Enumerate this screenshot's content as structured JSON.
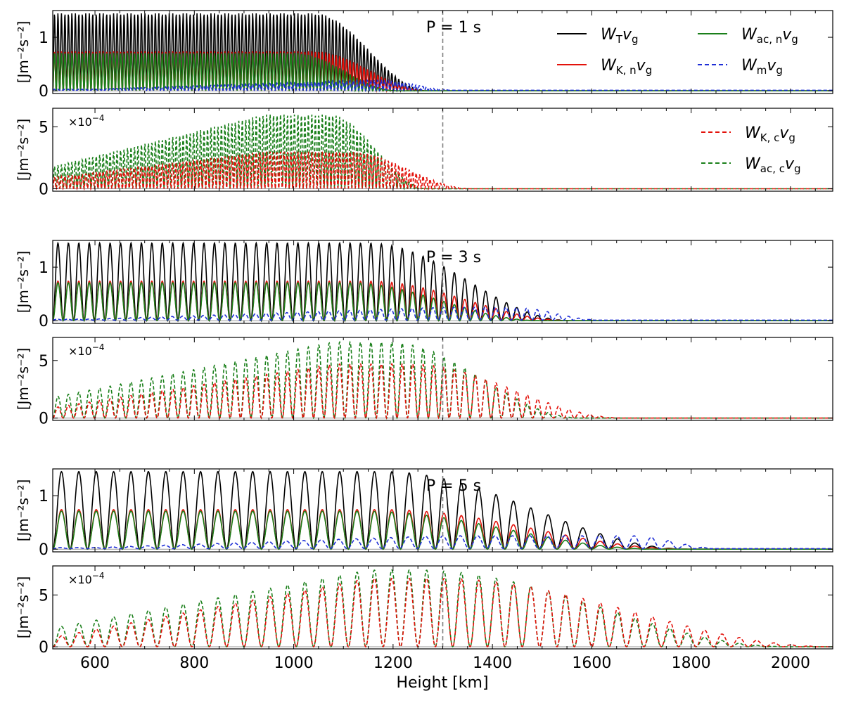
{
  "figure": {
    "xlabel": "Height [km]",
    "x_ticks": [
      600,
      800,
      1000,
      1200,
      1400,
      1600,
      1800,
      2000
    ],
    "xlim": [
      515,
      2085
    ],
    "vline_x": 1300,
    "colors": {
      "total": "#000000",
      "kinetic": "#e3120b",
      "acoustic": "#1a7f1a",
      "magnetic": "#1f2fd6",
      "vline": "#808080"
    }
  },
  "chart_data": [
    {
      "id": "p1-neutral",
      "type": "line",
      "title": "P = 1 s",
      "ylabel": "[Jm⁻²s⁻²]",
      "ylim": [
        -0.05,
        1.5
      ],
      "y_ticks": [
        0,
        1
      ],
      "multiplier": "",
      "period_km": 7,
      "cutoff_start": 1040,
      "cutoff_end": 1270,
      "series": [
        {
          "key": "total",
          "name": "WTvg",
          "peak": 1.45,
          "style": "solid",
          "color": "#000000"
        },
        {
          "key": "kinetic",
          "name": "WK,nvg",
          "peak": 0.75,
          "style": "solid",
          "color": "#e3120b"
        },
        {
          "key": "acoustic",
          "name": "Wac,nvg",
          "peak": 0.72,
          "style": "solid",
          "color": "#1a7f1a"
        },
        {
          "key": "magnetic",
          "name": "Wmvg",
          "peak": 0.12,
          "style": "dashed",
          "color": "#1f2fd6"
        }
      ],
      "legend": [
        {
          "label_main": "W",
          "label_sub": "T",
          "color": "#000000",
          "style": "solid"
        },
        {
          "label_main": "W",
          "label_sub": "ac, n",
          "color": "#1a7f1a",
          "style": "solid"
        },
        {
          "label_main": "W",
          "label_sub": "K, n",
          "color": "#e3120b",
          "style": "solid"
        },
        {
          "label_main": "W",
          "label_sub": "m",
          "color": "#1f2fd6",
          "style": "dashed"
        }
      ],
      "legend_var": "v",
      "legend_var_sub": "g"
    },
    {
      "id": "p1-charged",
      "type": "line",
      "title": "",
      "ylabel": "[Jm⁻²s⁻²]",
      "ylim": [
        -0.2,
        6.5
      ],
      "y_ticks": [
        0,
        5
      ],
      "multiplier": "×10",
      "multiplier_exp": "−4",
      "period_km": 7,
      "cutoff_start": 1070,
      "cutoff_end": 1270,
      "series": [
        {
          "key": "acoustic",
          "name": "Wac,cvg",
          "peak_start": 1.8,
          "peak_max": 6.0,
          "peak_at": 940,
          "style": "dashed",
          "color": "#1a7f1a"
        },
        {
          "key": "kinetic",
          "name": "WK,cvg",
          "peak_start": 0.9,
          "peak_max": 3.0,
          "peak_at": 940,
          "style": "dashed",
          "color": "#e3120b"
        }
      ],
      "legend": [
        {
          "label_main": "W",
          "label_sub": "K, c",
          "color": "#e3120b",
          "style": "dashed"
        },
        {
          "label_main": "W",
          "label_sub": "ac, c",
          "color": "#1a7f1a",
          "style": "dashed"
        }
      ],
      "legend_var": "v",
      "legend_var_sub": "g"
    },
    {
      "id": "p3-neutral",
      "type": "line",
      "title": "P = 3 s",
      "ylabel": "[Jm⁻²s⁻²]",
      "ylim": [
        -0.05,
        1.5
      ],
      "y_ticks": [
        0,
        1
      ],
      "multiplier": "",
      "period_km": 21,
      "cutoff_start": 1150,
      "cutoff_end": 1560
    },
    {
      "id": "p3-charged",
      "type": "line",
      "title": "",
      "ylabel": "[Jm⁻²s⁻²]",
      "ylim": [
        -0.2,
        7.0
      ],
      "y_ticks": [
        0,
        5
      ],
      "multiplier": "×10",
      "multiplier_exp": "−4",
      "period_km": 21,
      "cutoff_start": 1190,
      "cutoff_end": 1580
    },
    {
      "id": "p5-neutral",
      "type": "line",
      "title": "P = 5 s",
      "ylabel": "[Jm⁻²s⁻²]",
      "ylim": [
        -0.05,
        1.5
      ],
      "y_ticks": [
        0,
        1
      ],
      "multiplier": "",
      "period_km": 35,
      "cutoff_start": 1180,
      "cutoff_end": 1800
    },
    {
      "id": "p5-charged",
      "type": "line",
      "title": "",
      "ylabel": "[Jm⁻²s⁻²]",
      "ylim": [
        -0.2,
        7.8
      ],
      "y_ticks": [
        0,
        5
      ],
      "multiplier": "×10",
      "multiplier_exp": "−4",
      "period_km": 35,
      "cutoff_start": 1250,
      "cutoff_end": 2000
    }
  ]
}
